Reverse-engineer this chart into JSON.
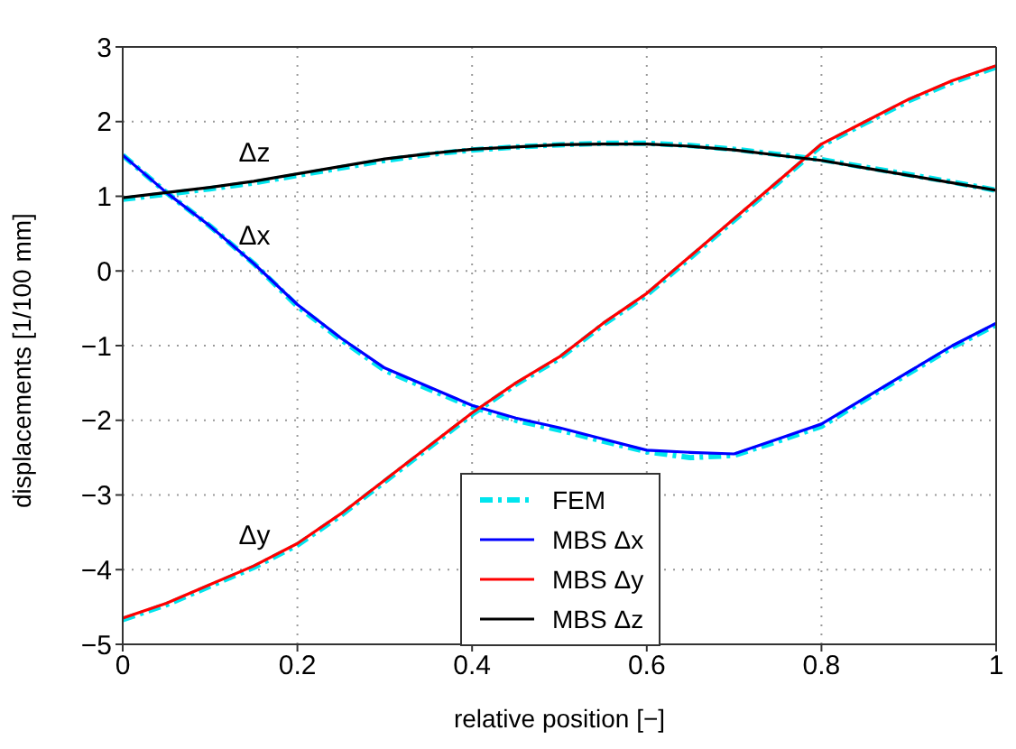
{
  "chart_data": {
    "type": "line",
    "xlabel": "relative position [−]",
    "ylabel": "displacements [1/100 mm]",
    "x": [
      0,
      0.05,
      0.1,
      0.15,
      0.2,
      0.25,
      0.3,
      0.35,
      0.4,
      0.45,
      0.5,
      0.55,
      0.6,
      0.65,
      0.7,
      0.75,
      0.8,
      0.85,
      0.9,
      0.95,
      1
    ],
    "series": [
      {
        "name": "FEM",
        "color": "#00e5ee",
        "line_style": "dashed",
        "values": [
          1.55,
          1.05,
          0.6,
          0.1,
          -0.47,
          -0.92,
          -1.33,
          -1.58,
          -1.82,
          -2.0,
          -2.13,
          -2.28,
          -2.42,
          -2.5,
          -2.47,
          -2.28,
          -2.08,
          -1.72,
          -1.37,
          -1.02,
          -0.72
        ]
      },
      {
        "color": "#00e5ee",
        "line_style": "dashed",
        "values": [
          -4.67,
          -4.47,
          -4.22,
          -3.97,
          -3.67,
          -3.27,
          -2.82,
          -2.37,
          -1.92,
          -1.52,
          -1.17,
          -0.72,
          -0.32,
          0.18,
          0.68,
          1.18,
          1.68,
          1.98,
          2.28,
          2.53,
          2.73
        ]
      },
      {
        "color": "#00e5ee",
        "line_style": "dashed",
        "values": [
          0.96,
          1.03,
          1.1,
          1.18,
          1.28,
          1.38,
          1.48,
          1.56,
          1.62,
          1.66,
          1.69,
          1.71,
          1.71,
          1.68,
          1.63,
          1.56,
          1.49,
          1.39,
          1.29,
          1.19,
          1.08
        ]
      },
      {
        "name": "MBS Δx",
        "color": "#0000ff",
        "line_style": "solid",
        "values": [
          1.55,
          1.05,
          0.6,
          0.1,
          -0.45,
          -0.9,
          -1.3,
          -1.55,
          -1.8,
          -1.97,
          -2.1,
          -2.25,
          -2.4,
          -2.43,
          -2.45,
          -2.25,
          -2.05,
          -1.7,
          -1.35,
          -1.0,
          -0.7
        ]
      },
      {
        "name": "MBS Δy",
        "color": "#ff0000",
        "line_style": "solid",
        "values": [
          -4.65,
          -4.45,
          -4.2,
          -3.95,
          -3.65,
          -3.25,
          -2.8,
          -2.35,
          -1.9,
          -1.5,
          -1.15,
          -0.7,
          -0.3,
          0.2,
          0.7,
          1.2,
          1.7,
          2.0,
          2.3,
          2.55,
          2.75
        ]
      },
      {
        "name": "MBS Δz",
        "color": "#000000",
        "line_style": "solid",
        "values": [
          0.98,
          1.05,
          1.12,
          1.2,
          1.3,
          1.4,
          1.5,
          1.57,
          1.63,
          1.66,
          1.69,
          1.7,
          1.7,
          1.67,
          1.62,
          1.55,
          1.48,
          1.38,
          1.28,
          1.18,
          1.08
        ]
      }
    ],
    "xlim": [
      0,
      1
    ],
    "xticks": [
      0,
      0.2,
      0.4,
      0.6,
      0.8,
      1
    ],
    "ylim": [
      -5,
      3
    ],
    "yticks": [
      -5,
      -4,
      -3,
      -2,
      -1,
      0,
      1,
      2,
      3
    ],
    "grid": true,
    "legend": "bottom",
    "marker": "none",
    "annotations": [
      "Δz",
      "Δx",
      "Δy"
    ]
  }
}
